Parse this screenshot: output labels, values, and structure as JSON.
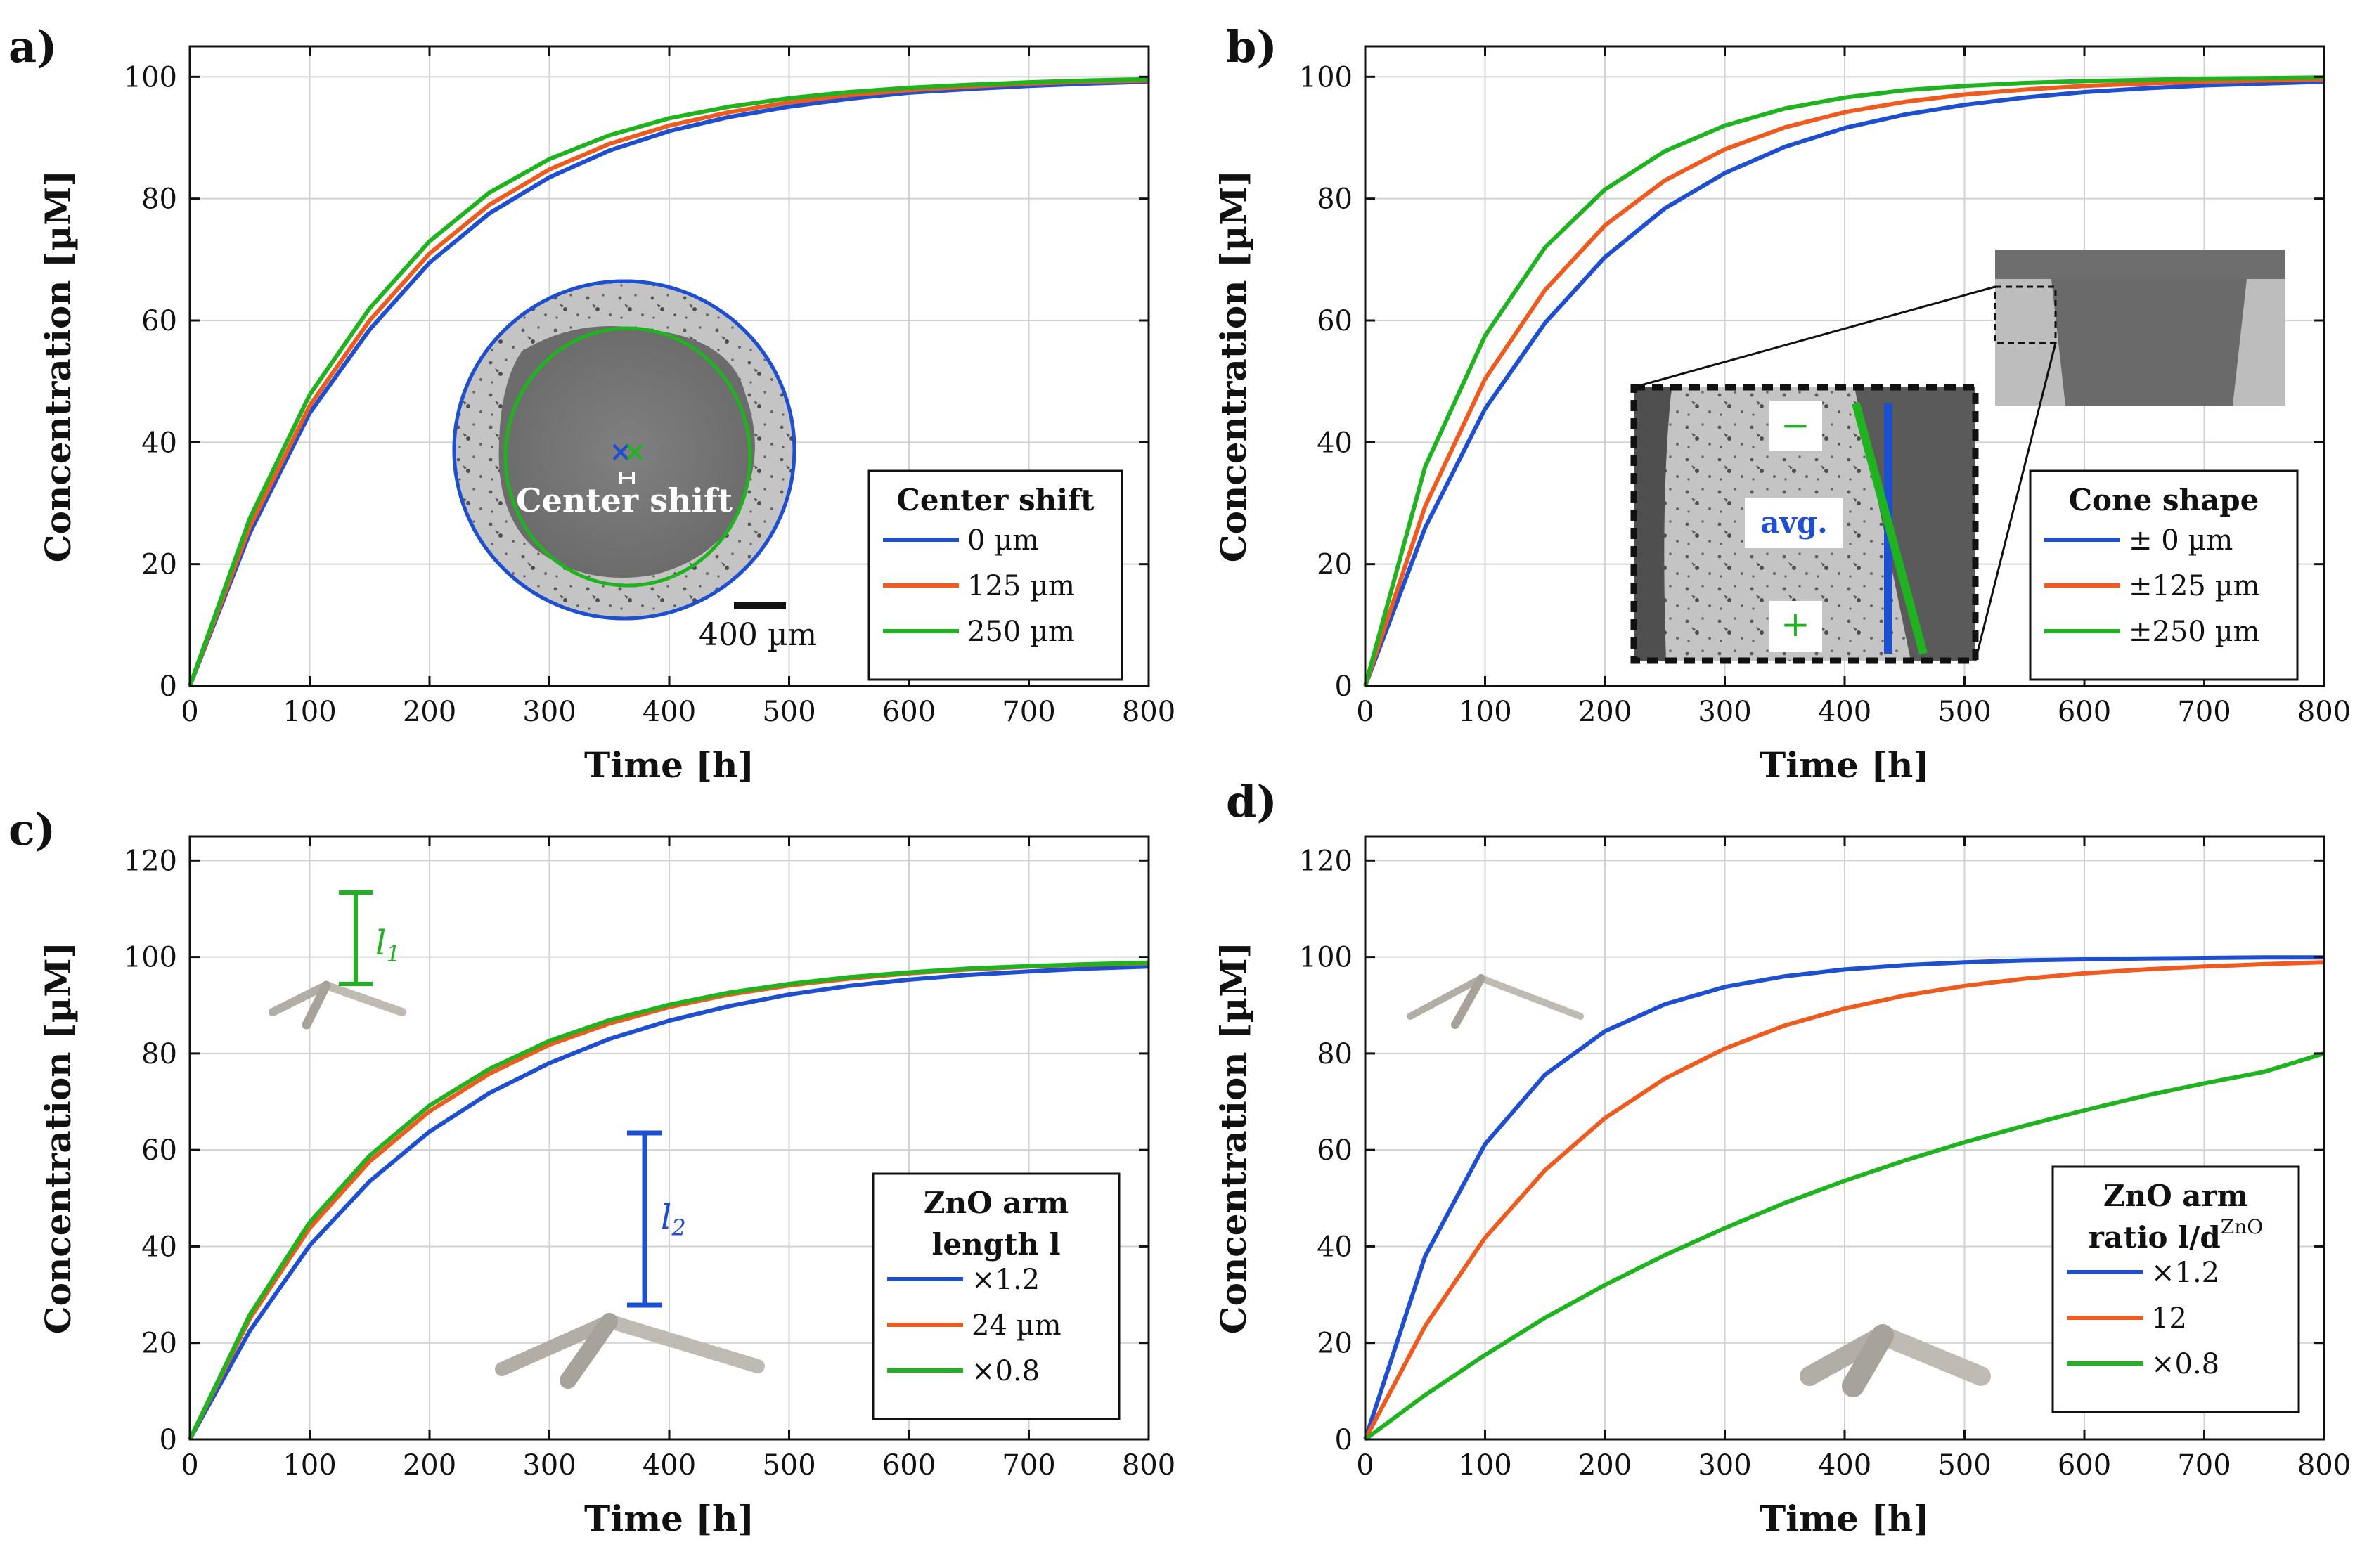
{
  "colors": {
    "blue": "#1f4fd1",
    "orange": "#ef5a1e",
    "green": "#1fb31f",
    "black": "#111111",
    "grey_light": "#bdbdbd",
    "grey_dark": "#6a6a6a",
    "grey_mid": "#9a9a9a"
  },
  "chart_data": [
    {
      "type": "line",
      "panel_label": "a)",
      "xlabel": "Time [h]",
      "ylabel": "Concentration [µM]",
      "xlim": [
        0,
        800
      ],
      "ylim": [
        0,
        105
      ],
      "xticks": [
        0,
        100,
        200,
        300,
        400,
        500,
        600,
        700,
        800
      ],
      "yticks": [
        0,
        20,
        40,
        60,
        80,
        100
      ],
      "legend_title": "Center shift",
      "legend_position": "bottom-right",
      "series": [
        {
          "name": "0 µm",
          "color": "blue",
          "x": [
            0,
            50,
            100,
            150,
            200,
            250,
            300,
            350,
            400,
            450,
            500,
            550,
            600,
            650,
            700,
            750,
            800
          ],
          "y": [
            0,
            25.1,
            44.8,
            58.5,
            69.5,
            77.6,
            83.5,
            87.9,
            91.1,
            93.4,
            95.1,
            96.4,
            97.4,
            98.0,
            98.5,
            98.9,
            99.2
          ]
        },
        {
          "name": "125 µm",
          "color": "orange",
          "x": [
            0,
            50,
            100,
            150,
            200,
            250,
            300,
            350,
            400,
            450,
            500,
            550,
            600,
            650,
            700,
            750,
            800
          ],
          "y": [
            0,
            26.1,
            46.0,
            60.0,
            71.0,
            79.0,
            84.8,
            89.0,
            92.0,
            94.2,
            95.8,
            97.0,
            97.8,
            98.4,
            98.9,
            99.2,
            99.4
          ]
        },
        {
          "name": "250 µm",
          "color": "green",
          "x": [
            0,
            50,
            100,
            150,
            200,
            250,
            300,
            350,
            400,
            450,
            500,
            550,
            600,
            650,
            700,
            750,
            800
          ],
          "y": [
            0,
            27.5,
            47.8,
            62.0,
            73.0,
            81.0,
            86.5,
            90.4,
            93.2,
            95.1,
            96.5,
            97.5,
            98.2,
            98.7,
            99.1,
            99.4,
            99.6
          ]
        }
      ],
      "inset": {
        "shape_label": "Center shift",
        "scale_bar": "400 µm"
      }
    },
    {
      "type": "line",
      "panel_label": "b)",
      "xlabel": "Time [h]",
      "ylabel": "Concentration [µM]",
      "xlim": [
        0,
        800
      ],
      "ylim": [
        0,
        105
      ],
      "xticks": [
        0,
        100,
        200,
        300,
        400,
        500,
        600,
        700,
        800
      ],
      "yticks": [
        0,
        20,
        40,
        60,
        80,
        100
      ],
      "legend_title": "Cone shape",
      "legend_position": "bottom-right",
      "series": [
        {
          "name": "±   0 µm",
          "color": "blue",
          "x": [
            0,
            50,
            100,
            150,
            200,
            250,
            300,
            350,
            400,
            450,
            500,
            550,
            600,
            650,
            700,
            750,
            800
          ],
          "y": [
            0,
            26.0,
            45.5,
            59.6,
            70.4,
            78.4,
            84.2,
            88.5,
            91.6,
            93.8,
            95.4,
            96.6,
            97.5,
            98.1,
            98.6,
            98.9,
            99.2
          ]
        },
        {
          "name": "±125 µm",
          "color": "orange",
          "x": [
            0,
            50,
            100,
            150,
            200,
            250,
            300,
            350,
            400,
            450,
            500,
            550,
            600,
            650,
            700,
            750,
            800
          ],
          "y": [
            0,
            29.5,
            50.4,
            65.0,
            75.6,
            83.0,
            88.1,
            91.7,
            94.2,
            95.9,
            97.1,
            97.9,
            98.5,
            98.9,
            99.2,
            99.4,
            99.6
          ]
        },
        {
          "name": "±250 µm",
          "color": "green",
          "x": [
            0,
            50,
            100,
            150,
            200,
            250,
            300,
            350,
            400,
            450,
            500,
            550,
            600,
            650,
            700,
            750,
            800
          ],
          "y": [
            0,
            36.0,
            57.5,
            72.0,
            81.5,
            87.8,
            92.0,
            94.8,
            96.6,
            97.8,
            98.5,
            99.0,
            99.3,
            99.5,
            99.7,
            99.8,
            99.9
          ]
        }
      ],
      "inset": {
        "minus_label": "−",
        "plus_label": "+",
        "avg_label": "avg."
      }
    },
    {
      "type": "line",
      "panel_label": "c)",
      "xlabel": "Time [h]",
      "ylabel": "Concentration [µM]",
      "xlim": [
        0,
        800
      ],
      "ylim": [
        0,
        125
      ],
      "xticks": [
        0,
        100,
        200,
        300,
        400,
        500,
        600,
        700,
        800
      ],
      "yticks": [
        0,
        20,
        40,
        60,
        80,
        100,
        120
      ],
      "legend_title": "ZnO arm",
      "legend_title_line2": "length l",
      "legend_position": "bottom-right",
      "series": [
        {
          "name": "×1.2",
          "color": "blue",
          "x": [
            0,
            50,
            100,
            150,
            200,
            250,
            300,
            350,
            400,
            450,
            500,
            550,
            600,
            650,
            700,
            750,
            800
          ],
          "y": [
            0,
            22.5,
            40.2,
            53.5,
            63.8,
            71.8,
            78.0,
            83.0,
            86.8,
            89.8,
            92.2,
            94.0,
            95.3,
            96.3,
            97.0,
            97.6,
            98.0
          ]
        },
        {
          "name": "24 µm",
          "color": "orange",
          "x": [
            0,
            50,
            100,
            150,
            200,
            250,
            300,
            350,
            400,
            450,
            500,
            550,
            600,
            650,
            700,
            750,
            800
          ],
          "y": [
            0,
            25.0,
            43.8,
            57.6,
            68.0,
            75.8,
            81.8,
            86.2,
            89.6,
            92.2,
            94.1,
            95.5,
            96.6,
            97.4,
            98.0,
            98.4,
            98.7
          ]
        },
        {
          "name": "×0.8",
          "color": "green",
          "x": [
            0,
            50,
            100,
            150,
            200,
            250,
            300,
            350,
            400,
            450,
            500,
            550,
            600,
            650,
            700,
            750,
            800
          ],
          "y": [
            0,
            25.8,
            45.0,
            58.8,
            69.2,
            76.8,
            82.6,
            86.9,
            90.1,
            92.6,
            94.4,
            95.8,
            96.8,
            97.6,
            98.1,
            98.5,
            98.8
          ]
        }
      ],
      "inset": {
        "l1_label": "l",
        "l1_sub": "1",
        "l2_label": "l",
        "l2_sub": "2"
      }
    },
    {
      "type": "line",
      "panel_label": "d)",
      "xlabel": "Time [h]",
      "ylabel": "Concentration [µM]",
      "xlim": [
        0,
        800
      ],
      "ylim": [
        0,
        125
      ],
      "xticks": [
        0,
        100,
        200,
        300,
        400,
        500,
        600,
        700,
        800
      ],
      "yticks": [
        0,
        20,
        40,
        60,
        80,
        100,
        120
      ],
      "legend_title": "ZnO arm",
      "legend_title_line2": "ratio l/d",
      "legend_title_sup": "ZnO",
      "legend_position": "bottom-right",
      "series": [
        {
          "name": "×1.2",
          "color": "blue",
          "x": [
            0,
            50,
            100,
            150,
            200,
            250,
            300,
            350,
            400,
            450,
            500,
            550,
            600,
            650,
            700,
            750,
            800
          ],
          "y": [
            0,
            38.0,
            61.2,
            75.6,
            84.6,
            90.2,
            93.8,
            96.0,
            97.4,
            98.3,
            98.9,
            99.3,
            99.5,
            99.7,
            99.8,
            99.9,
            99.9
          ]
        },
        {
          "name": "12",
          "color": "orange",
          "x": [
            0,
            50,
            100,
            150,
            200,
            250,
            300,
            350,
            400,
            450,
            500,
            550,
            600,
            650,
            700,
            750,
            800
          ],
          "y": [
            0,
            23.5,
            41.8,
            55.8,
            66.6,
            74.8,
            81.0,
            85.8,
            89.3,
            92.0,
            94.0,
            95.5,
            96.6,
            97.4,
            98.0,
            98.5,
            98.9
          ]
        },
        {
          "name": "×0.8",
          "color": "green",
          "x": [
            0,
            50,
            100,
            150,
            200,
            250,
            300,
            350,
            400,
            450,
            500,
            550,
            600,
            650,
            700,
            750,
            800
          ],
          "y": [
            0,
            9.2,
            17.5,
            25.2,
            32.0,
            38.2,
            43.8,
            49.0,
            53.6,
            57.8,
            61.6,
            65.0,
            68.2,
            71.2,
            73.8,
            76.2,
            80.0
          ]
        }
      ]
    }
  ]
}
